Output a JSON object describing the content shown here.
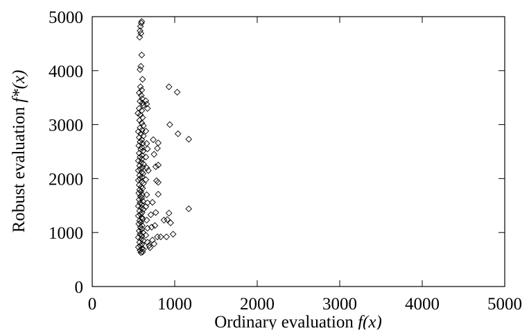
{
  "chart_data": {
    "type": "scatter",
    "xlabel": "Ordinary evaluation f(x)",
    "ylabel": "Robust evaluation f*(x)",
    "xlabel_parts": {
      "text": "Ordinary evaluation ",
      "math": "f(x)"
    },
    "ylabel_parts": {
      "text": "Robust evaluation ",
      "math": "f*(x)"
    },
    "xlim": [
      0,
      5000
    ],
    "ylim": [
      0,
      5000
    ],
    "xticks": [
      "0",
      "1000",
      "2000",
      "3000",
      "4000",
      "5000"
    ],
    "yticks": [
      "0",
      "1000",
      "2000",
      "3000",
      "4000",
      "5000"
    ],
    "grid": false,
    "marker": "diamond",
    "points": [
      [
        600,
        4910
      ],
      [
        595,
        4880
      ],
      [
        585,
        4820
      ],
      [
        580,
        4740
      ],
      [
        590,
        4690
      ],
      [
        575,
        4620
      ],
      [
        600,
        4290
      ],
      [
        590,
        4080
      ],
      [
        580,
        4020
      ],
      [
        610,
        3840
      ],
      [
        585,
        3700
      ],
      [
        600,
        3640
      ],
      [
        570,
        3590
      ],
      [
        595,
        3540
      ],
      [
        605,
        3480
      ],
      [
        580,
        3430
      ],
      [
        610,
        3400
      ],
      [
        620,
        3360
      ],
      [
        570,
        3300
      ],
      [
        600,
        3260
      ],
      [
        555,
        3210
      ],
      [
        585,
        3180
      ],
      [
        610,
        3130
      ],
      [
        575,
        3080
      ],
      [
        600,
        3030
      ],
      [
        620,
        2980
      ],
      [
        580,
        2940
      ],
      [
        605,
        2900
      ],
      [
        560,
        2870
      ],
      [
        590,
        2830
      ],
      [
        620,
        2790
      ],
      [
        570,
        2760
      ],
      [
        600,
        2720
      ],
      [
        580,
        2680
      ],
      [
        610,
        2650
      ],
      [
        565,
        2610
      ],
      [
        600,
        2580
      ],
      [
        590,
        2540
      ],
      [
        615,
        2510
      ],
      [
        570,
        2470
      ],
      [
        605,
        2430
      ],
      [
        580,
        2400
      ],
      [
        600,
        2360
      ],
      [
        560,
        2330
      ],
      [
        595,
        2300
      ],
      [
        620,
        2270
      ],
      [
        575,
        2240
      ],
      [
        610,
        2210
      ],
      [
        585,
        2180
      ],
      [
        560,
        2150
      ],
      [
        600,
        2120
      ],
      [
        615,
        2090
      ],
      [
        575,
        2060
      ],
      [
        605,
        2030
      ],
      [
        580,
        2000
      ],
      [
        560,
        1970
      ],
      [
        600,
        1940
      ],
      [
        620,
        1910
      ],
      [
        570,
        1880
      ],
      [
        595,
        1850
      ],
      [
        610,
        1820
      ],
      [
        575,
        1790
      ],
      [
        590,
        1760
      ],
      [
        565,
        1730
      ],
      [
        605,
        1700
      ],
      [
        585,
        1670
      ],
      [
        600,
        1640
      ],
      [
        570,
        1610
      ],
      [
        615,
        1580
      ],
      [
        580,
        1550
      ],
      [
        600,
        1520
      ],
      [
        560,
        1490
      ],
      [
        595,
        1460
      ],
      [
        620,
        1430
      ],
      [
        575,
        1400
      ],
      [
        605,
        1370
      ],
      [
        585,
        1340
      ],
      [
        560,
        1310
      ],
      [
        600,
        1280
      ],
      [
        610,
        1250
      ],
      [
        575,
        1220
      ],
      [
        590,
        1190
      ],
      [
        565,
        1160
      ],
      [
        605,
        1130
      ],
      [
        585,
        1100
      ],
      [
        600,
        1060
      ],
      [
        570,
        1030
      ],
      [
        615,
        1000
      ],
      [
        580,
        970
      ],
      [
        600,
        940
      ],
      [
        560,
        910
      ],
      [
        595,
        880
      ],
      [
        620,
        850
      ],
      [
        575,
        820
      ],
      [
        605,
        790
      ],
      [
        585,
        760
      ],
      [
        560,
        730
      ],
      [
        600,
        700
      ],
      [
        580,
        670
      ],
      [
        610,
        640
      ],
      [
        590,
        630
      ],
      [
        620,
        690
      ],
      [
        650,
        3440
      ],
      [
        660,
        3380
      ],
      [
        670,
        3300
      ],
      [
        650,
        2880
      ],
      [
        660,
        2650
      ],
      [
        670,
        2550
      ],
      [
        650,
        2400
      ],
      [
        660,
        2200
      ],
      [
        680,
        2150
      ],
      [
        650,
        1980
      ],
      [
        660,
        1700
      ],
      [
        670,
        1550
      ],
      [
        650,
        1480
      ],
      [
        660,
        1230
      ],
      [
        670,
        1080
      ],
      [
        650,
        950
      ],
      [
        670,
        820
      ],
      [
        690,
        760
      ],
      [
        700,
        720
      ],
      [
        710,
        1330
      ],
      [
        720,
        1100
      ],
      [
        730,
        1560
      ],
      [
        740,
        2720
      ],
      [
        750,
        2450
      ],
      [
        770,
        2220
      ],
      [
        780,
        1960
      ],
      [
        770,
        1370
      ],
      [
        760,
        1130
      ],
      [
        750,
        790
      ],
      [
        730,
        860
      ],
      [
        800,
        2660
      ],
      [
        790,
        2560
      ],
      [
        800,
        2250
      ],
      [
        800,
        1930
      ],
      [
        800,
        1710
      ],
      [
        790,
        920
      ],
      [
        830,
        920
      ],
      [
        870,
        1230
      ],
      [
        900,
        920
      ],
      [
        910,
        1240
      ],
      [
        930,
        1360
      ],
      [
        950,
        1180
      ],
      [
        930,
        3700
      ],
      [
        940,
        3000
      ],
      [
        980,
        970
      ],
      [
        1030,
        3600
      ],
      [
        1040,
        2830
      ],
      [
        1170,
        2730
      ],
      [
        1170,
        1440
      ]
    ]
  }
}
